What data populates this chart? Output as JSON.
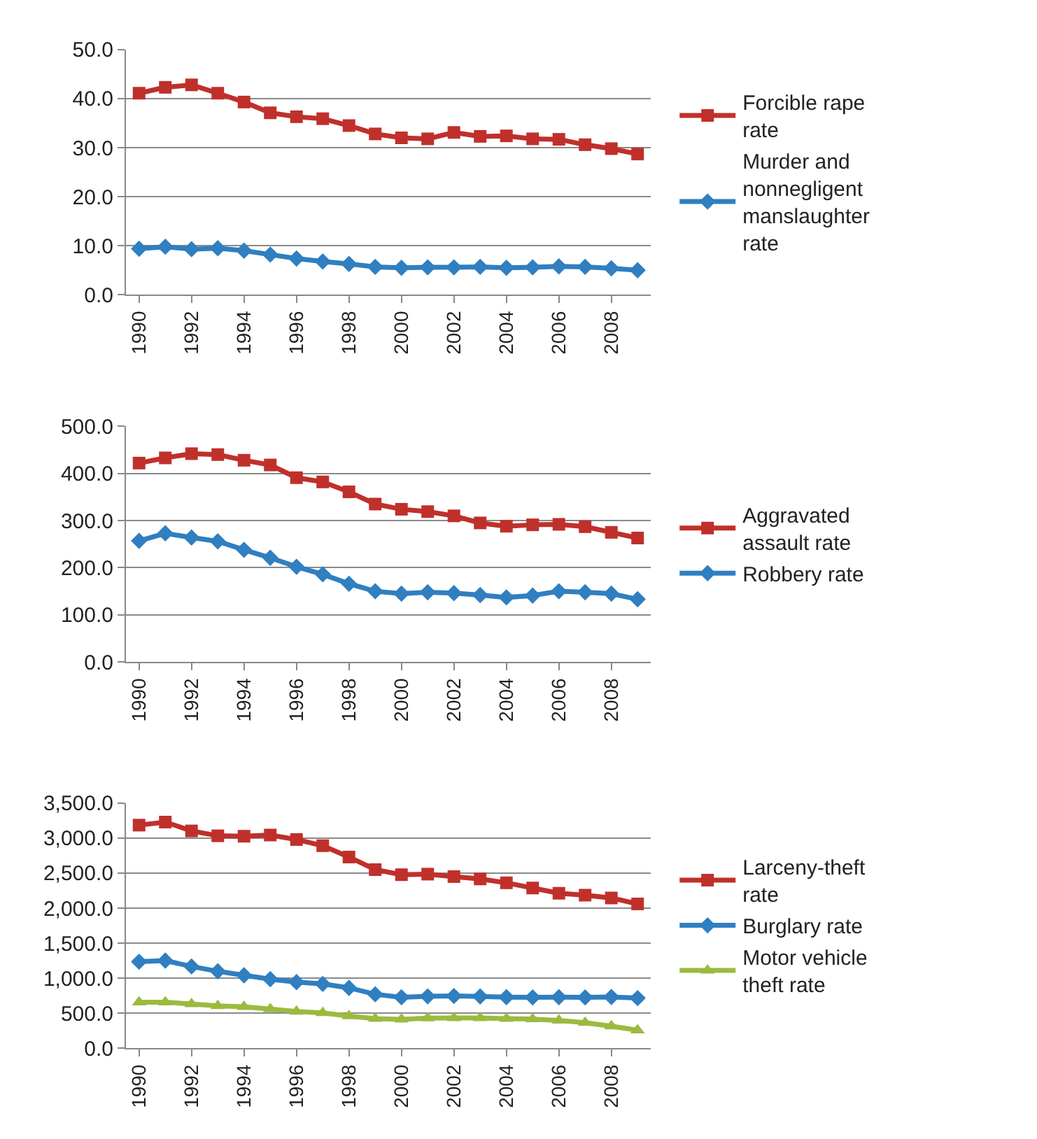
{
  "chart_data": [
    {
      "type": "line",
      "categories": [
        "1990",
        null,
        "1992",
        null,
        "1994",
        null,
        "1996",
        null,
        "1998",
        null,
        "2000",
        null,
        "2002",
        null,
        "2004",
        null,
        "2006",
        null,
        "2008",
        null
      ],
      "series": [
        {
          "name": "Forcible rape rate",
          "color": "#c0302b",
          "marker": "square",
          "values": [
            41.1,
            42.3,
            42.8,
            41.1,
            39.3,
            37.1,
            36.3,
            35.9,
            34.5,
            32.8,
            32.0,
            31.8,
            33.1,
            32.3,
            32.4,
            31.8,
            31.7,
            30.6,
            29.8,
            28.7
          ]
        },
        {
          "name": "Murder and nonnegligent manslaughter rate",
          "color": "#2f7fc1",
          "marker": "diamond",
          "values": [
            9.4,
            9.8,
            9.3,
            9.5,
            9.0,
            8.2,
            7.4,
            6.8,
            6.3,
            5.7,
            5.5,
            5.6,
            5.6,
            5.7,
            5.5,
            5.6,
            5.8,
            5.7,
            5.4,
            5.0
          ]
        }
      ],
      "ylim": [
        0,
        50
      ],
      "yticks": [
        {
          "value": 0,
          "label": "0.0"
        },
        {
          "value": 10,
          "label": "10.0"
        },
        {
          "value": 20,
          "label": "20.0"
        },
        {
          "value": 30,
          "label": "30.0"
        },
        {
          "value": 40,
          "label": "40.0"
        },
        {
          "value": 50,
          "label": "50.0"
        }
      ],
      "grid": "y",
      "legend": "right"
    },
    {
      "type": "line",
      "categories": [
        "1990",
        null,
        "1992",
        null,
        "1994",
        null,
        "1996",
        null,
        "1998",
        null,
        "2000",
        null,
        "2002",
        null,
        "2004",
        null,
        "2006",
        null,
        "2008",
        null
      ],
      "series": [
        {
          "name": "Aggravated assault rate",
          "color": "#c0302b",
          "marker": "square",
          "values": [
            422,
            433,
            442,
            440,
            428,
            418,
            391,
            382,
            361,
            335,
            324,
            319,
            310,
            295,
            288,
            291,
            292,
            287,
            275,
            263
          ]
        },
        {
          "name": "Robbery rate",
          "color": "#2f7fc1",
          "marker": "diamond",
          "values": [
            257,
            273,
            264,
            256,
            238,
            221,
            202,
            186,
            166,
            150,
            145,
            148,
            146,
            142,
            137,
            141,
            150,
            148,
            145,
            133
          ]
        }
      ],
      "ylim": [
        0,
        500
      ],
      "yticks": [
        {
          "value": 0,
          "label": "0.0"
        },
        {
          "value": 100,
          "label": "100.0"
        },
        {
          "value": 200,
          "label": "200.0"
        },
        {
          "value": 300,
          "label": "300.0"
        },
        {
          "value": 400,
          "label": "400.0"
        },
        {
          "value": 500,
          "label": "500.0"
        }
      ],
      "grid": "y",
      "legend": "right"
    },
    {
      "type": "line",
      "categories": [
        "1990",
        null,
        "1992",
        null,
        "1994",
        null,
        "1996",
        null,
        "1998",
        null,
        "2000",
        null,
        "2002",
        null,
        "2004",
        null,
        "2006",
        null,
        "2008",
        null
      ],
      "series": [
        {
          "name": "Larceny-theft rate",
          "color": "#c0302b",
          "marker": "square",
          "values": [
            3185,
            3229,
            3103,
            3033,
            3027,
            3044,
            2980,
            2892,
            2730,
            2550,
            2478,
            2486,
            2451,
            2417,
            2362,
            2288,
            2213,
            2186,
            2146,
            2061
          ]
        },
        {
          "name": "Burglary rate",
          "color": "#2f7fc1",
          "marker": "diamond",
          "values": [
            1236,
            1252,
            1168,
            1099,
            1042,
            987,
            945,
            919,
            863,
            771,
            729,
            742,
            747,
            741,
            730,
            727,
            730,
            727,
            733,
            717
          ]
        },
        {
          "name": "Motor vehicle theft rate",
          "color": "#9bbb3f",
          "marker": "triangle",
          "values": [
            658,
            659,
            632,
            606,
            592,
            560,
            526,
            506,
            460,
            423,
            412,
            431,
            433,
            434,
            422,
            417,
            398,
            365,
            315,
            259
          ]
        }
      ],
      "ylim": [
        0,
        3500
      ],
      "yticks": [
        {
          "value": 0,
          "label": "0.0"
        },
        {
          "value": 500,
          "label": "500.0"
        },
        {
          "value": 1000,
          "label": "1,000.0"
        },
        {
          "value": 1500,
          "label": "1,500.0"
        },
        {
          "value": 2000,
          "label": "2,000.0"
        },
        {
          "value": 2500,
          "label": "2,500.0"
        },
        {
          "value": 3000,
          "label": "3,000.0"
        },
        {
          "value": 3500,
          "label": "3,500.0"
        }
      ],
      "grid": "y",
      "legend": "right"
    }
  ]
}
